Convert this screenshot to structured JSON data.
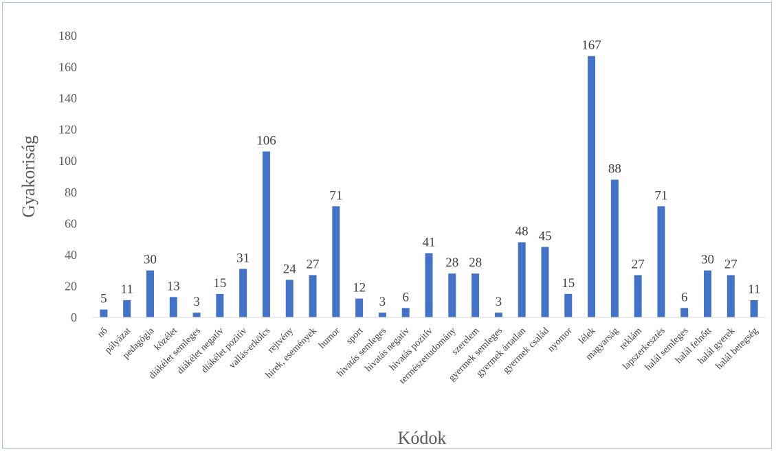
{
  "chart_data": {
    "type": "bar",
    "title": "",
    "xlabel": "Kódok",
    "ylabel": "Gyakoriság",
    "ylim": [
      0,
      180
    ],
    "yticks": [
      0,
      20,
      40,
      60,
      80,
      100,
      120,
      140,
      160,
      180
    ],
    "grid": false,
    "legend": "none",
    "bar_color": "#4472c4",
    "categories": [
      "nő",
      "pályázat",
      "pedagógia",
      "közélet",
      "diákélet semleges",
      "diákélet negatív",
      "diákélet pozitív",
      "vallás-erkölcs",
      "rejtvény",
      "hírek, események",
      "humor",
      "sport",
      "hivatás semleges",
      "hivatás negatív",
      "hivatás pozitív",
      "természettudomány",
      "szerelem",
      "gyermek semleges",
      "gyermek ártatlan",
      "gyermek család",
      "nyomor",
      "lélek",
      "magyarság",
      "reklám",
      "lapszerkesztés",
      "halál semleges",
      "halál felnőtt",
      "halál gyerek",
      "halál betegség"
    ],
    "values": [
      5,
      11,
      30,
      13,
      3,
      15,
      31,
      106,
      24,
      27,
      71,
      12,
      3,
      6,
      41,
      28,
      28,
      3,
      48,
      45,
      15,
      167,
      88,
      27,
      71,
      6,
      30,
      27,
      11
    ]
  }
}
